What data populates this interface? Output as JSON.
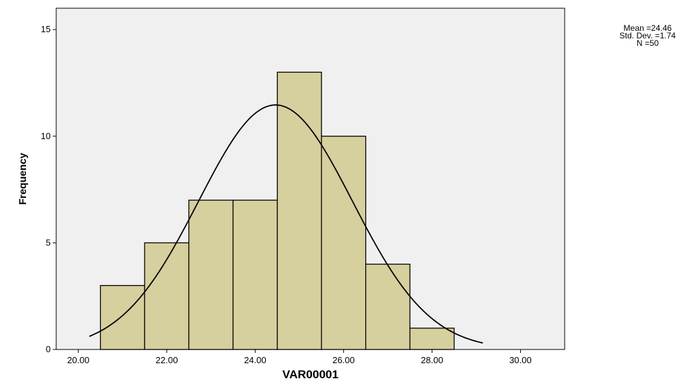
{
  "chart_data": {
    "type": "bar",
    "subtype": "histogram",
    "xlabel": "VAR00001",
    "ylabel": "Frequency",
    "xlim": [
      19.5,
      31.0
    ],
    "ylim": [
      0,
      16
    ],
    "x_ticks": [
      20.0,
      22.0,
      24.0,
      26.0,
      28.0,
      30.0
    ],
    "x_tick_labels": [
      "20.00",
      "22.00",
      "24.00",
      "26.00",
      "28.00",
      "30.00"
    ],
    "y_ticks": [
      0,
      5,
      10,
      15
    ],
    "y_tick_labels": [
      "0",
      "5",
      "10",
      "15"
    ],
    "bins": [
      {
        "start": 20.5,
        "end": 21.5,
        "count": 3
      },
      {
        "start": 21.5,
        "end": 22.5,
        "count": 5
      },
      {
        "start": 22.5,
        "end": 23.5,
        "count": 7
      },
      {
        "start": 23.5,
        "end": 24.5,
        "count": 7
      },
      {
        "start": 24.5,
        "end": 25.5,
        "count": 13
      },
      {
        "start": 25.5,
        "end": 26.5,
        "count": 10
      },
      {
        "start": 26.5,
        "end": 27.5,
        "count": 4
      },
      {
        "start": 27.5,
        "end": 28.5,
        "count": 1
      }
    ],
    "normal_curve": {
      "mean": 24.46,
      "std_dev": 1.74,
      "n": 50
    },
    "stats_text": [
      "Mean =24.46",
      "Std. Dev. =1.74",
      "N =50"
    ],
    "grid": false,
    "colors": {
      "bar_fill": "#d6cf9e",
      "plot_background": "#f0f0f0",
      "stroke": "#000000"
    }
  }
}
